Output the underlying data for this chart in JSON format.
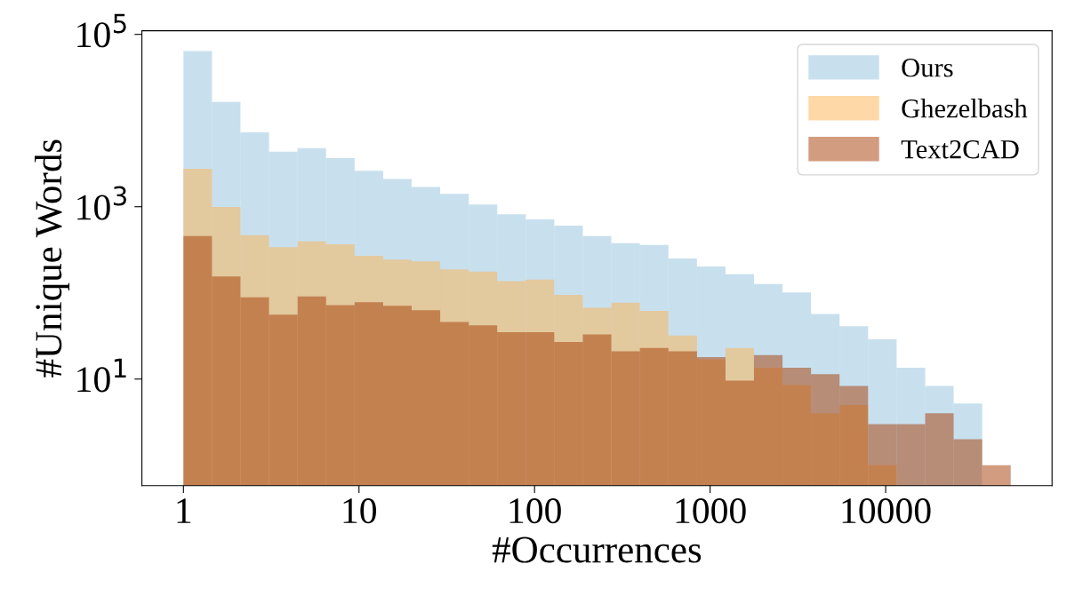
{
  "chart_data": {
    "type": "histogram",
    "xlabel": "#Occurrences",
    "ylabel": "#Unique Words",
    "log": "xy",
    "grid": false,
    "legend": "top right",
    "bins": [
      1,
      1.454,
      2.113,
      3.073,
      4.467,
      6.494,
      9.441,
      13.73,
      19.95,
      29.0,
      42.2,
      61.3,
      89.1,
      129.5,
      188.4,
      273.8,
      398,
      579,
      842,
      1224,
      1778,
      2586,
      3758,
      5464,
      7943,
      11548,
      16788,
      24406,
      35481,
      51582
    ],
    "series": [
      {
        "name": "Ours",
        "color": "#c8e0ee",
        "values": [
          64000,
          16400,
          7300,
          4350,
          4800,
          3670,
          2620,
          2100,
          1690,
          1410,
          1060,
          815,
          712,
          605,
          457,
          377,
          361,
          251,
          203,
          165,
          127,
          101,
          57,
          41,
          29,
          13.5,
          8.3,
          5.2,
          null
        ]
      },
      {
        "name": "Ghezelbash",
        "color": "#fed8a6",
        "values": [
          2750,
          995,
          469,
          340,
          396,
          367,
          270,
          244,
          232,
          188,
          177,
          137,
          143,
          95,
          67,
          77,
          62,
          32,
          17,
          23,
          13.5,
          8.5,
          4,
          5,
          1,
          null,
          null,
          null,
          null
        ]
      },
      {
        "name": "Text2CAD",
        "color": "#d29c80",
        "values": [
          457,
          155,
          89,
          56,
          91,
          72,
          78,
          71,
          63,
          46,
          42,
          35,
          35,
          27,
          33,
          21,
          23,
          21,
          18,
          9.6,
          19,
          13.5,
          11.4,
          8.3,
          3,
          3,
          4,
          2,
          1
        ]
      }
    ],
    "xlim": [
      0.58,
      88700
    ],
    "ylim": [
      0.58,
      110000
    ],
    "xticks": [
      1,
      10,
      100,
      1000,
      10000
    ],
    "yticks": [
      {
        "value": 10,
        "label": "10$^{1}$"
      },
      {
        "value": 1000,
        "label": "10$^{3}$"
      },
      {
        "value": 100000,
        "label": "10$^{5}$"
      }
    ]
  }
}
